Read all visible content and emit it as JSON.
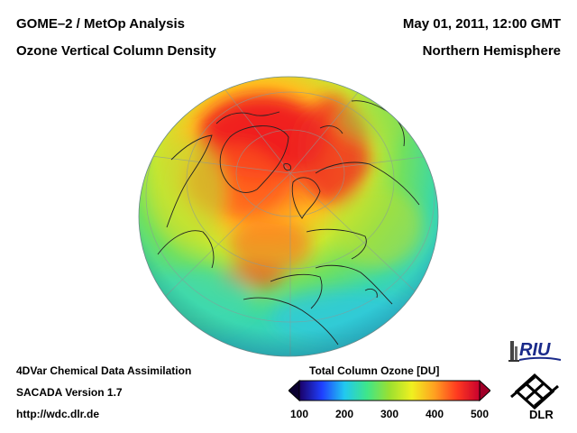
{
  "header": {
    "title_line1": "GOME–2 / MetOp Analysis",
    "title_line2": "Ozone Vertical Column Density",
    "date_line": "May 01, 2011, 12:00 GMT",
    "region_line": "Northern Hemisphere"
  },
  "footer": {
    "line1": "4DVar Chemical Data Assimilation",
    "line2": "SACADA Version 1.7",
    "line3": "http://wdc.dlr.de"
  },
  "colorbar": {
    "title": "Total Column Ozone [DU]",
    "ticks": [
      "100",
      "200",
      "300",
      "400",
      "500"
    ],
    "range": [
      100,
      500
    ],
    "colors": [
      "#1a0066",
      "#1f3fff",
      "#21c8f0",
      "#3ee68a",
      "#9be030",
      "#f0f020",
      "#ffa020",
      "#ff3a20",
      "#c8002e"
    ]
  },
  "logos": {
    "riu": "RIU",
    "dlr": "DLR"
  },
  "map": {
    "projection": "orthographic",
    "view": "north-polar"
  }
}
